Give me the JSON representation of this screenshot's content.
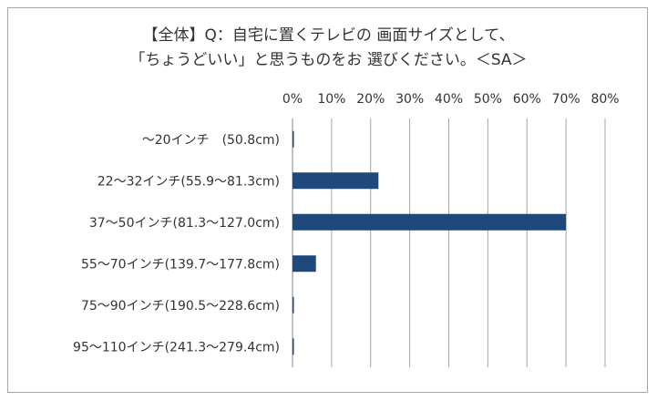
{
  "chart_data": {
    "type": "bar",
    "orientation": "horizontal",
    "title_lines": [
      "【全体】Q：自宅に置くテレビの 画面サイズとして、",
      "「ちょうどいい」と思うものをお 選びください。＜SA＞"
    ],
    "xlabel": "",
    "ylabel": "",
    "x_ticks": [
      "0%",
      "10%",
      "20%",
      "30%",
      "40%",
      "50%",
      "60%",
      "70%",
      "80%"
    ],
    "xlim": [
      0,
      80
    ],
    "x_axis_position": "top",
    "grid": "vertical",
    "legend": "none",
    "categories": [
      "～20インチ　(50.8cm)",
      "22～32インチ(55.9～81.3cm)",
      "37～50インチ(81.3～127.0cm)",
      "55～70インチ(139.7～177.8cm)",
      "75～90インチ(190.5～228.6cm)",
      "95～110インチ(241.3～279.4cm)"
    ],
    "values": [
      0.3,
      22,
      70,
      6,
      0.3,
      0.3
    ],
    "bar_color": "#1f497d"
  }
}
